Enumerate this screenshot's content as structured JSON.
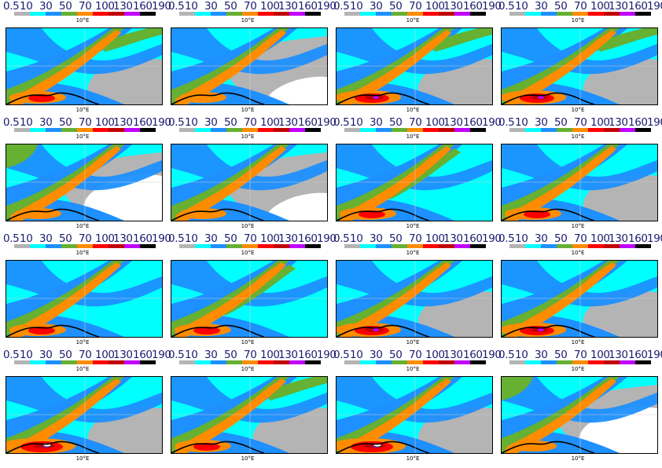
{
  "colorbar": {
    "labels": [
      "0.5",
      "10",
      "30",
      "50",
      "70",
      "100",
      "130",
      "160",
      "190"
    ],
    "colors": [
      "#b4b4b4",
      "#00ffff",
      "#1e90ff",
      "#66b032",
      "#ff8c00",
      "#ff0000",
      "#c00000",
      "#c000ff",
      "#000000"
    ]
  },
  "map_colors": {
    "gray": "#b4b4b4",
    "cyan": "#00ffff",
    "blue": "#1e90ff",
    "green": "#66b032",
    "orange": "#ff8c00",
    "red": "#ff0000",
    "dark_red": "#c00000",
    "magenta": "#c000ff",
    "white": "#ffffff"
  },
  "lon_label": "10°E",
  "panels": [
    {
      "id": 1
    },
    {
      "id": 2
    },
    {
      "id": 3
    },
    {
      "id": 4
    },
    {
      "id": 5
    },
    {
      "id": 6
    },
    {
      "id": 7
    },
    {
      "id": 8
    },
    {
      "id": 9
    },
    {
      "id": 10
    },
    {
      "id": 11
    },
    {
      "id": 12
    },
    {
      "id": 13
    },
    {
      "id": 14
    },
    {
      "id": 15
    },
    {
      "id": 16
    }
  ]
}
